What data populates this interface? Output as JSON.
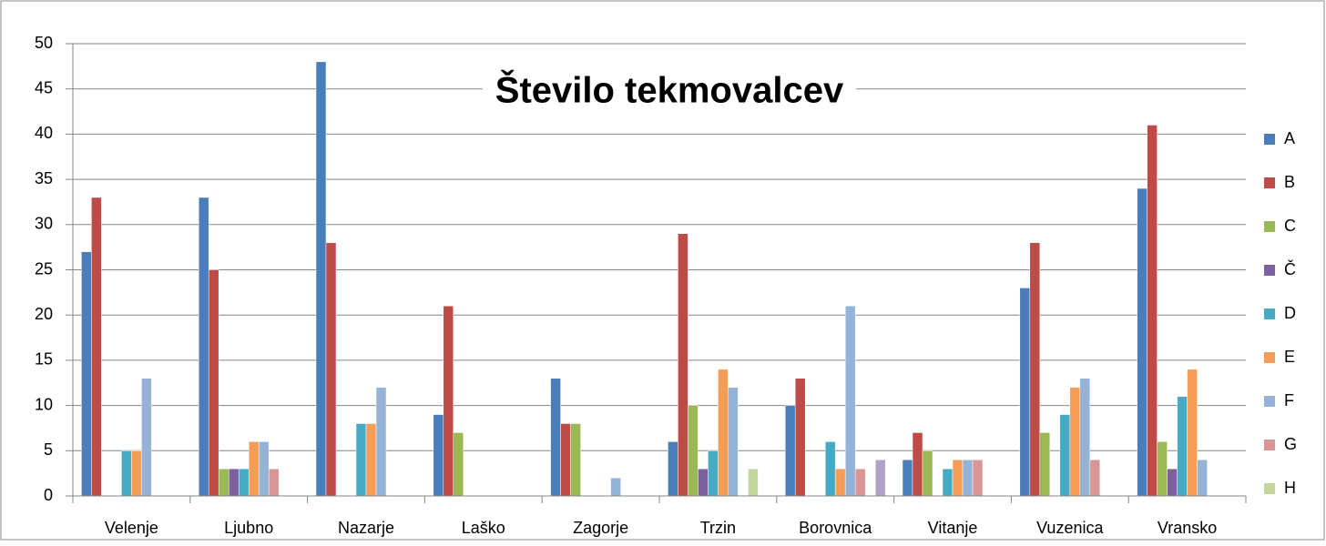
{
  "chart_data": {
    "type": "bar",
    "title": "Število tekmovalcev",
    "categories": [
      "Velenje",
      "Ljubno",
      "Nazarje",
      "Laško",
      "Zagorje",
      "Trzin",
      "Borovnica",
      "Vitanje",
      "Vuzenica",
      "Vransko"
    ],
    "series": [
      {
        "name": "A",
        "color": "#4a7ebb",
        "values": [
          27,
          33,
          48,
          9,
          13,
          6,
          10,
          4,
          23,
          34
        ]
      },
      {
        "name": "B",
        "color": "#be4b48",
        "values": [
          33,
          25,
          28,
          21,
          8,
          29,
          13,
          7,
          28,
          41
        ]
      },
      {
        "name": "C",
        "color": "#98b954",
        "values": [
          null,
          3,
          null,
          7,
          8,
          10,
          null,
          5,
          7,
          6
        ]
      },
      {
        "name": "Č",
        "color": "#7d60a0",
        "values": [
          null,
          3,
          null,
          null,
          null,
          3,
          null,
          null,
          null,
          3
        ]
      },
      {
        "name": "D",
        "color": "#46aac5",
        "values": [
          5,
          3,
          8,
          null,
          null,
          5,
          6,
          3,
          9,
          11
        ]
      },
      {
        "name": "E",
        "color": "#f59d56",
        "values": [
          5,
          6,
          8,
          null,
          null,
          14,
          3,
          4,
          12,
          14
        ]
      },
      {
        "name": "F",
        "color": "#95b3d7",
        "values": [
          13,
          6,
          12,
          null,
          2,
          12,
          21,
          4,
          13,
          4
        ]
      },
      {
        "name": "G",
        "color": "#d99694",
        "values": [
          null,
          3,
          null,
          null,
          null,
          null,
          3,
          4,
          4,
          null
        ]
      },
      {
        "name": "H",
        "color": "#c3d69b",
        "values": [
          null,
          null,
          null,
          null,
          null,
          3,
          null,
          null,
          null,
          null
        ]
      },
      {
        "color": "#b2a1c7",
        "values": [
          null,
          null,
          null,
          null,
          null,
          null,
          4,
          null,
          null,
          null
        ]
      }
    ],
    "ylim": [
      0,
      50
    ],
    "yticks": [
      0,
      5,
      10,
      15,
      20,
      25,
      30,
      35,
      40,
      45,
      50
    ],
    "grid": true,
    "legend": "right"
  }
}
